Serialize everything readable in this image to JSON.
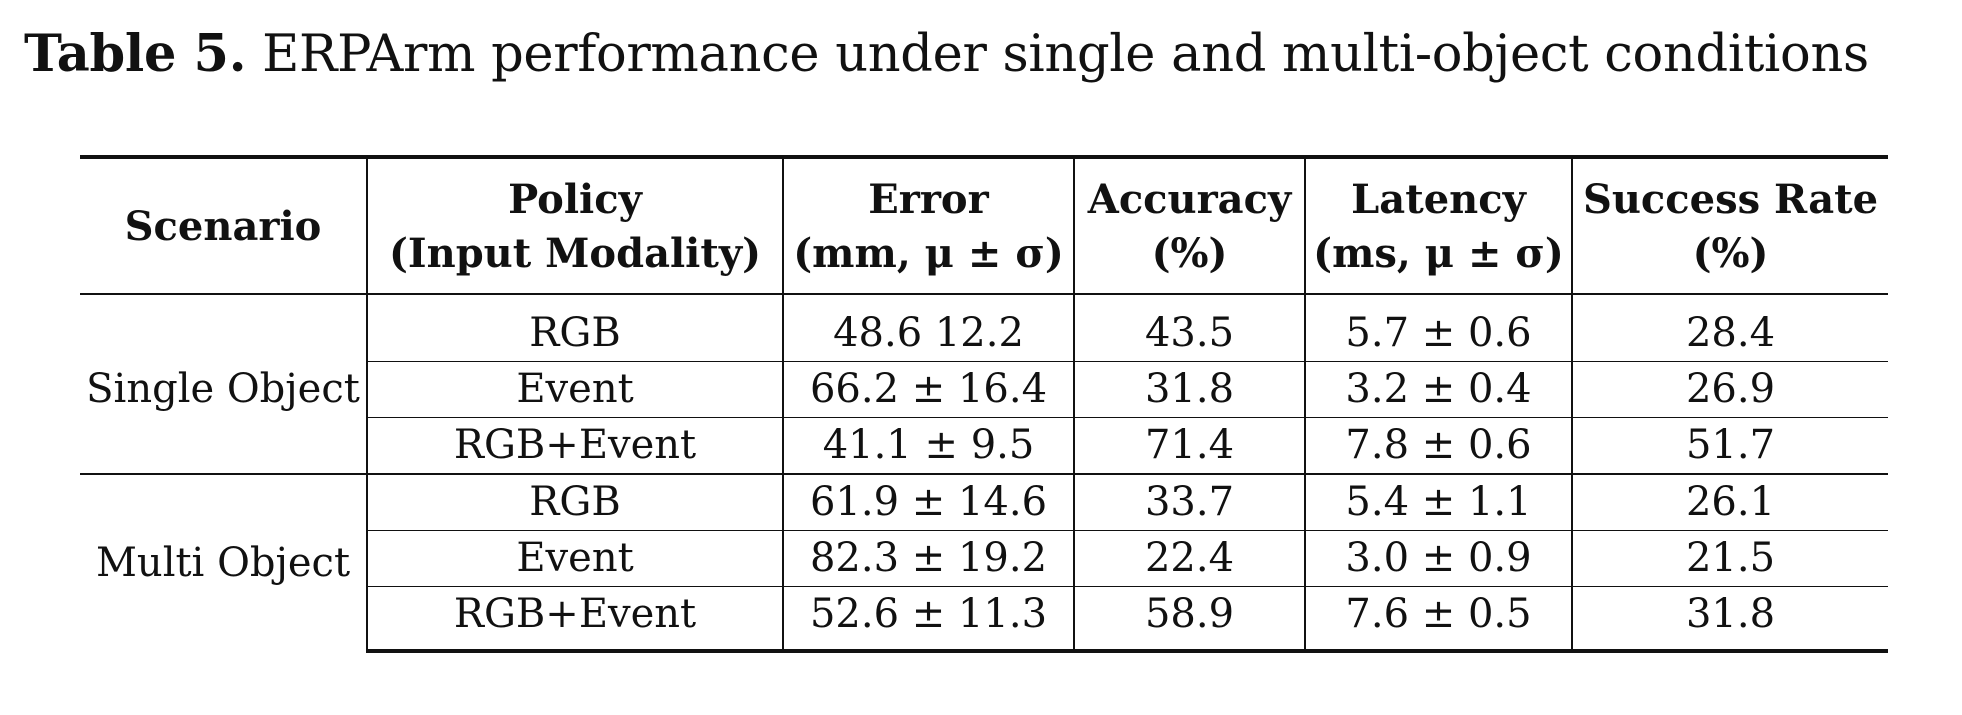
{
  "caption": {
    "label": "Table 5.",
    "text": "ERPArm performance under single and multi-object conditions"
  },
  "table": {
    "headers": [
      {
        "line1": "Scenario",
        "line2": ""
      },
      {
        "line1": "Policy",
        "line2": "(Input Modality)"
      },
      {
        "line1": "Error",
        "line2": "(mm, μ ± σ)"
      },
      {
        "line1": "Accuracy",
        "line2": "(%)"
      },
      {
        "line1": "Latency",
        "line2": "(ms, μ ± σ)"
      },
      {
        "line1": "Success Rate",
        "line2": "(%)"
      }
    ],
    "groups": [
      {
        "scenario": "Single Object",
        "rows": [
          {
            "policy": "RGB",
            "error": "48.6 12.2",
            "accuracy": "43.5",
            "latency": "5.7 ± 0.6",
            "success": "28.4"
          },
          {
            "policy": "Event",
            "error": "66.2 ± 16.4",
            "accuracy": "31.8",
            "latency": "3.2 ± 0.4",
            "success": "26.9"
          },
          {
            "policy": "RGB+Event",
            "error": "41.1 ± 9.5",
            "accuracy": "71.4",
            "latency": "7.8 ± 0.6",
            "success": "51.7"
          }
        ]
      },
      {
        "scenario": "Multi Object",
        "rows": [
          {
            "policy": "RGB",
            "error": "61.9 ± 14.6",
            "accuracy": "33.7",
            "latency": "5.4 ± 1.1",
            "success": "26.1"
          },
          {
            "policy": "Event",
            "error": "82.3 ± 19.2",
            "accuracy": "22.4",
            "latency": "3.0 ± 0.9",
            "success": "21.5"
          },
          {
            "policy": "RGB+Event",
            "error": "52.6 ± 11.3",
            "accuracy": "58.9",
            "latency": "7.6 ± 0.5",
            "success": "31.8"
          }
        ]
      }
    ]
  }
}
